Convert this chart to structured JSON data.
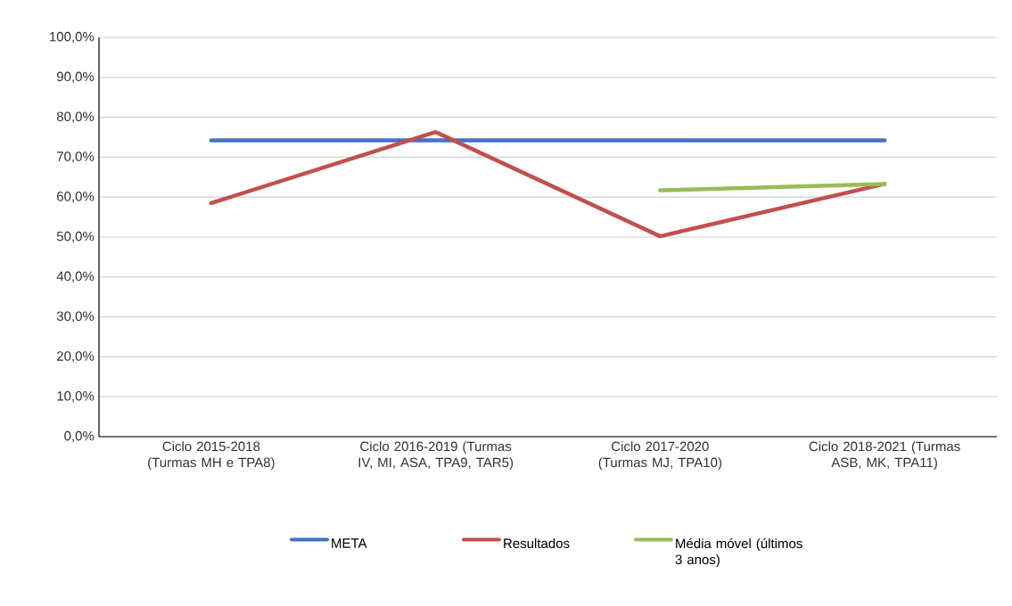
{
  "chart_data": {
    "type": "line",
    "categories": [
      "Ciclo 2015-2018 (Turmas MH e TPA8)",
      "Ciclo 2016-2019 (Turmas IV, MI, ASA, TPA9, TAR5)",
      "Ciclo 2017-2020 (Turmas MJ, TPA10)",
      "Ciclo 2018-2021 (Turmas ASB, MK, TPA11)"
    ],
    "series": [
      {
        "name": "META",
        "color": "#4472c4",
        "values": [
          74.2,
          74.2,
          74.2,
          74.2
        ]
      },
      {
        "name": "Resultados",
        "color": "#c0504d",
        "values": [
          58.5,
          76.3,
          50.2,
          63.3
        ]
      },
      {
        "name": "Média móvel (últimos 3 anos)",
        "color": "#9bbb59",
        "values": [
          null,
          null,
          61.7,
          63.3
        ]
      }
    ],
    "ylim": [
      0,
      100
    ],
    "yticks": [
      {
        "value": 0,
        "label": "0,0%"
      },
      {
        "value": 10,
        "label": "10,0%"
      },
      {
        "value": 20,
        "label": "20,0%"
      },
      {
        "value": 30,
        "label": "30,0%"
      },
      {
        "value": 40,
        "label": "40,0%"
      },
      {
        "value": 50,
        "label": "50,0%"
      },
      {
        "value": 60,
        "label": "60,0%"
      },
      {
        "value": 70,
        "label": "70,0%"
      },
      {
        "value": 80,
        "label": "80,0%"
      },
      {
        "value": 90,
        "label": "90,0%"
      },
      {
        "value": 100,
        "label": "100,0%"
      }
    ],
    "grid": "y",
    "legend": "bottom",
    "marker": "none",
    "line_style": "solid"
  }
}
